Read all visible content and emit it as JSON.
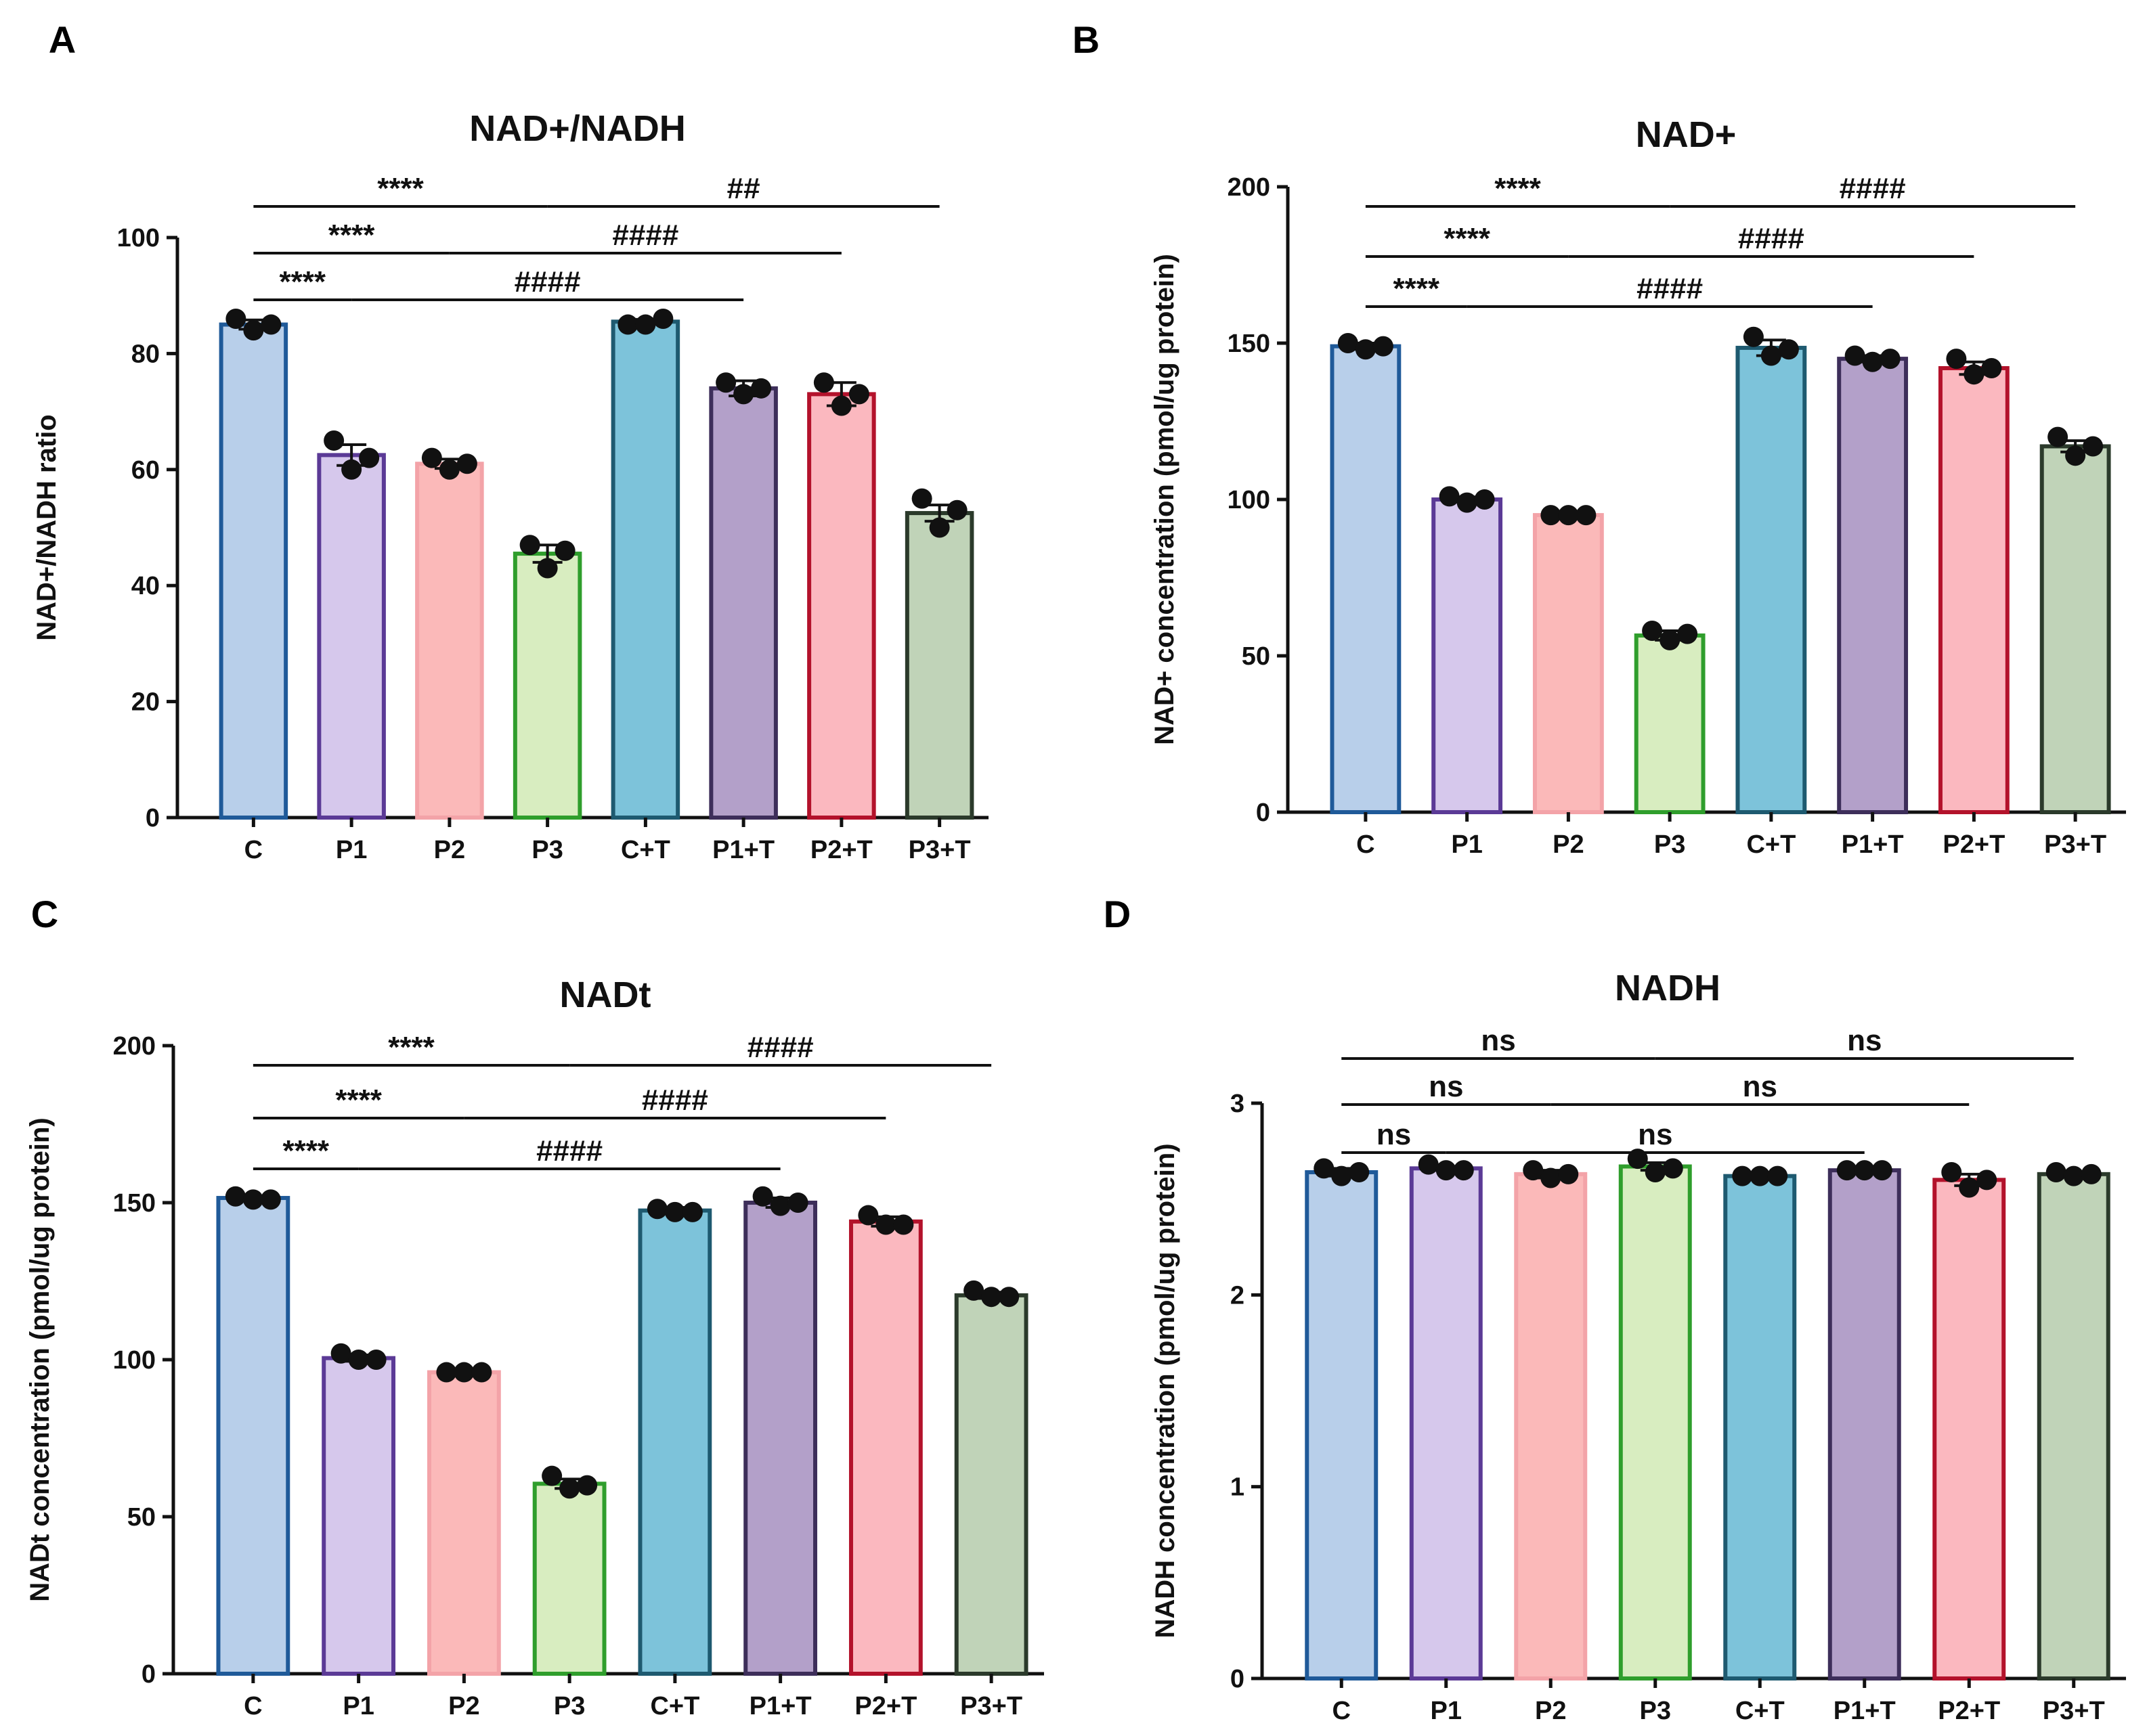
{
  "figure": {
    "panel_letters": [
      "A",
      "B",
      "C",
      "D"
    ]
  },
  "chart_data": [
    {
      "panel": "A",
      "type": "bar",
      "title": "NAD+/NADH",
      "xlabel": "",
      "ylabel": "NAD+/NADH ratio",
      "ylim": [
        0,
        100
      ],
      "yticks": [
        0,
        20,
        40,
        60,
        80,
        100
      ],
      "categories": [
        "C",
        "P1",
        "P2",
        "P3",
        "C+T",
        "P1+T",
        "P2+T",
        "P3+T"
      ],
      "values": [
        85,
        62.5,
        61,
        45.5,
        85.5,
        74,
        73,
        52.5
      ],
      "errors": [
        0.8,
        1.8,
        0.8,
        1.5,
        0.4,
        1.3,
        2,
        1.4
      ],
      "points": [
        [
          86,
          84,
          85
        ],
        [
          65,
          60,
          62
        ],
        [
          62,
          60,
          61
        ],
        [
          47,
          43,
          46
        ],
        [
          85,
          85,
          86
        ],
        [
          75,
          73,
          74
        ],
        [
          75,
          71,
          73
        ],
        [
          55,
          50,
          53
        ]
      ],
      "fill_colors": [
        "#b8cfea",
        "#d6c8ec",
        "#fbb9b9",
        "#d8edc0",
        "#7dc3da",
        "#b3a0c9",
        "#fbb8bf",
        "#c0d3b8"
      ],
      "edge_colors": [
        "#1f5a99",
        "#5b3a96",
        "#f3a3a8",
        "#2f9e2c",
        "#1e5a70",
        "#3d2e5a",
        "#b3122b",
        "#2b3a2b"
      ],
      "comparisons": [
        {
          "from": 0,
          "to": 3,
          "label": "****",
          "row": 0
        },
        {
          "from": 3,
          "to": 7,
          "label": "##",
          "row": 0
        },
        {
          "from": 0,
          "to": 2,
          "label": "****",
          "row": 1
        },
        {
          "from": 2,
          "to": 6,
          "label": "####",
          "row": 1
        },
        {
          "from": 0,
          "to": 1,
          "label": "****",
          "row": 2
        },
        {
          "from": 1,
          "to": 5,
          "label": "####",
          "row": 2
        }
      ]
    },
    {
      "panel": "B",
      "type": "bar",
      "title": "NAD+",
      "xlabel": "",
      "ylabel": "NAD+ concentration (pmol/ug protein)",
      "ylim": [
        0,
        200
      ],
      "yticks": [
        0,
        50,
        100,
        150,
        200
      ],
      "categories": [
        "C",
        "P1",
        "P2",
        "P3",
        "C+T",
        "P1+T",
        "P2+T",
        "P3+T"
      ],
      "values": [
        149,
        100,
        95,
        56.5,
        148.5,
        145,
        142,
        117
      ],
      "errors": [
        1,
        0.8,
        0.6,
        1.5,
        2.5,
        1,
        2,
        1.8
      ],
      "points": [
        [
          150,
          148,
          149
        ],
        [
          101,
          99,
          100
        ],
        [
          95,
          95,
          95
        ],
        [
          58,
          55,
          57
        ],
        [
          152,
          146,
          148
        ],
        [
          146,
          144,
          145
        ],
        [
          145,
          140,
          142
        ],
        [
          120,
          114,
          117
        ]
      ],
      "fill_colors": [
        "#b8cfea",
        "#d6c8ec",
        "#fbb9b9",
        "#d8edc0",
        "#7dc3da",
        "#b3a0c9",
        "#fbb8bf",
        "#c0d3b8"
      ],
      "edge_colors": [
        "#1f5a99",
        "#5b3a96",
        "#f3a3a8",
        "#2f9e2c",
        "#1e5a70",
        "#3d2e5a",
        "#b3122b",
        "#2b3a2b"
      ],
      "comparisons": [
        {
          "from": 0,
          "to": 3,
          "label": "****",
          "row": 0
        },
        {
          "from": 3,
          "to": 7,
          "label": "####",
          "row": 0
        },
        {
          "from": 0,
          "to": 2,
          "label": "****",
          "row": 1
        },
        {
          "from": 2,
          "to": 6,
          "label": "####",
          "row": 1
        },
        {
          "from": 0,
          "to": 1,
          "label": "****",
          "row": 2
        },
        {
          "from": 1,
          "to": 5,
          "label": "####",
          "row": 2
        }
      ]
    },
    {
      "panel": "C",
      "type": "bar",
      "title": "NADt",
      "xlabel": "",
      "ylabel": "NADt concentration (pmol/ug protein)",
      "ylim": [
        0,
        200
      ],
      "yticks": [
        0,
        50,
        100,
        150,
        200
      ],
      "categories": [
        "C",
        "P1",
        "P2",
        "P3",
        "C+T",
        "P1+T",
        "P2+T",
        "P3+T"
      ],
      "values": [
        151.5,
        100.5,
        96,
        60.5,
        147.5,
        150,
        144,
        120.5
      ],
      "errors": [
        0.5,
        1,
        0.5,
        1.5,
        1,
        1.5,
        1.5,
        1
      ],
      "points": [
        [
          152,
          151,
          151
        ],
        [
          102,
          100,
          100
        ],
        [
          96,
          96,
          96
        ],
        [
          63,
          59,
          60
        ],
        [
          148,
          147,
          147
        ],
        [
          152,
          149,
          150
        ],
        [
          146,
          143,
          143
        ],
        [
          122,
          120,
          120
        ]
      ],
      "fill_colors": [
        "#b8cfea",
        "#d6c8ec",
        "#fbb9b9",
        "#d8edc0",
        "#7dc3da",
        "#b3a0c9",
        "#fbb8bf",
        "#c0d3b8"
      ],
      "edge_colors": [
        "#1f5a99",
        "#5b3a96",
        "#f3a3a8",
        "#2f9e2c",
        "#1e5a70",
        "#3d2e5a",
        "#b3122b",
        "#2b3a2b"
      ],
      "comparisons": [
        {
          "from": 0,
          "to": 3,
          "label": "****",
          "row": 0
        },
        {
          "from": 3,
          "to": 7,
          "label": "####",
          "row": 0
        },
        {
          "from": 0,
          "to": 2,
          "label": "****",
          "row": 1
        },
        {
          "from": 2,
          "to": 6,
          "label": "####",
          "row": 1
        },
        {
          "from": 0,
          "to": 1,
          "label": "****",
          "row": 2
        },
        {
          "from": 1,
          "to": 5,
          "label": "####",
          "row": 2
        }
      ]
    },
    {
      "panel": "D",
      "type": "bar",
      "title": "NADH",
      "xlabel": "",
      "ylabel": "NADH concentration (pmol/ug protein)",
      "ylim": [
        0,
        3
      ],
      "yticks": [
        0,
        1,
        2,
        3
      ],
      "categories": [
        "C",
        "P1",
        "P2",
        "P3",
        "C+T",
        "P1+T",
        "P2+T",
        "P3+T"
      ],
      "values": [
        2.64,
        2.66,
        2.63,
        2.67,
        2.62,
        2.65,
        2.6,
        2.63
      ],
      "errors": [
        0.02,
        0.01,
        0.02,
        0.02,
        0.01,
        0.01,
        0.03,
        0.01
      ],
      "points": [
        [
          2.66,
          2.62,
          2.64
        ],
        [
          2.68,
          2.65,
          2.65
        ],
        [
          2.65,
          2.61,
          2.63
        ],
        [
          2.71,
          2.64,
          2.66
        ],
        [
          2.62,
          2.62,
          2.62
        ],
        [
          2.65,
          2.65,
          2.65
        ],
        [
          2.64,
          2.56,
          2.6
        ],
        [
          2.64,
          2.62,
          2.63
        ]
      ],
      "fill_colors": [
        "#b8cfea",
        "#d6c8ec",
        "#fbb9b9",
        "#d8edc0",
        "#7dc3da",
        "#b3a0c9",
        "#fbb8bf",
        "#c0d3b8"
      ],
      "edge_colors": [
        "#1f5a99",
        "#5b3a96",
        "#f3a3a8",
        "#2f9e2c",
        "#1e5a70",
        "#3d2e5a",
        "#b3122b",
        "#2b3a2b"
      ],
      "comparisons": [
        {
          "from": 0,
          "to": 3,
          "label": "ns",
          "row": 0
        },
        {
          "from": 3,
          "to": 7,
          "label": "ns",
          "row": 0
        },
        {
          "from": 0,
          "to": 2,
          "label": "ns",
          "row": 1
        },
        {
          "from": 2,
          "to": 6,
          "label": "ns",
          "row": 1
        },
        {
          "from": 0,
          "to": 1,
          "label": "ns",
          "row": 2
        },
        {
          "from": 1,
          "to": 5,
          "label": "ns",
          "row": 2
        }
      ]
    }
  ]
}
